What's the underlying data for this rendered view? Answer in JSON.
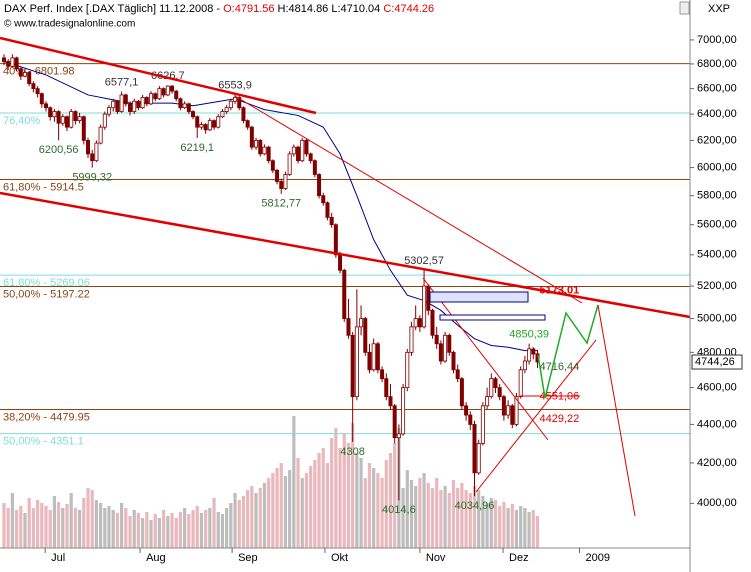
{
  "header": {
    "title": "DAX Perf. Index [.DAX  Täglich] 11.12.2008 - ",
    "open": "O:4791.56",
    "high_low": " H:4814.86 L:4710.04 ",
    "close": "C:4744.26",
    "copyright": "© www.tradesignalonline.com",
    "corner": "XXP"
  },
  "chart_data": {
    "type": "candlestick",
    "log_scale": true,
    "candle_color": "#800000",
    "xlim": [
      -0.95,
      163.3
    ],
    "ylim": [
      3790,
      7240
    ],
    "yticks": [
      {
        "value": 4000,
        "label": "4000,00"
      },
      {
        "value": 4200,
        "label": "4200,00"
      },
      {
        "value": 4400,
        "label": "4400,00"
      },
      {
        "value": 4600,
        "label": "4600,00"
      },
      {
        "value": 4800,
        "label": "4800,00"
      },
      {
        "value": 5000,
        "label": "5000,00"
      },
      {
        "value": 5200,
        "label": "5200,00"
      },
      {
        "value": 5400,
        "label": "5400,00"
      },
      {
        "value": 5600,
        "label": "5600,00"
      },
      {
        "value": 5800,
        "label": "5800,00"
      },
      {
        "value": 6000,
        "label": "6000,00"
      },
      {
        "value": 6200,
        "label": "6200,00"
      },
      {
        "value": 6400,
        "label": "6400,00"
      },
      {
        "value": 6600,
        "label": "6600,00"
      },
      {
        "value": 6800,
        "label": "6800,00"
      },
      {
        "value": 7000,
        "label": "7000,00"
      }
    ],
    "xticks": [
      {
        "value": 9.8,
        "label": "Jul"
      },
      {
        "value": 32.4,
        "label": "Aug"
      },
      {
        "value": 54.3,
        "label": "Sep"
      },
      {
        "value": 76.4,
        "label": "Okt"
      },
      {
        "value": 99,
        "label": "Nov"
      },
      {
        "value": 118.8,
        "label": "Dez"
      },
      {
        "value": 137,
        "label": "2009"
      }
    ],
    "ohlc": [
      [
        6850,
        6880,
        6790,
        6820
      ],
      [
        6820,
        6840,
        6750,
        6780
      ],
      [
        6780,
        6880,
        6770,
        6850
      ],
      [
        6850,
        6860,
        6740,
        6760
      ],
      [
        6760,
        6770,
        6670,
        6700
      ],
      [
        6700,
        6760,
        6690,
        6730
      ],
      [
        6730,
        6740,
        6620,
        6640
      ],
      [
        6640,
        6660,
        6570,
        6600
      ],
      [
        6600,
        6620,
        6530,
        6560
      ],
      [
        6560,
        6570,
        6450,
        6480
      ],
      [
        6480,
        6500,
        6420,
        6450
      ],
      [
        6450,
        6460,
        6350,
        6380
      ],
      [
        6380,
        6440,
        6340,
        6420
      ],
      [
        6420,
        6430,
        6200.56,
        6330
      ],
      [
        6330,
        6400,
        6310,
        6380
      ],
      [
        6380,
        6390,
        6270,
        6300
      ],
      [
        6300,
        6440,
        6290,
        6420
      ],
      [
        6420,
        6430,
        6320,
        6350
      ],
      [
        6350,
        6410,
        6330,
        6380
      ],
      [
        6380,
        6390,
        6170,
        6200
      ],
      [
        6200,
        6220,
        6070,
        6100
      ],
      [
        6100,
        6130,
        5999.32,
        6050
      ],
      [
        6050,
        6200,
        6040,
        6180
      ],
      [
        6180,
        6320,
        6170,
        6300
      ],
      [
        6300,
        6420,
        6280,
        6400
      ],
      [
        6400,
        6470,
        6380,
        6450
      ],
      [
        6450,
        6520,
        6420,
        6500
      ],
      [
        6500,
        6510,
        6400,
        6420
      ],
      [
        6420,
        6577.1,
        6410,
        6550
      ],
      [
        6550,
        6560,
        6460,
        6480
      ],
      [
        6480,
        6500,
        6390,
        6420
      ],
      [
        6420,
        6520,
        6400,
        6500
      ],
      [
        6500,
        6510,
        6430,
        6450
      ],
      [
        6450,
        6550,
        6440,
        6530
      ],
      [
        6530,
        6540,
        6460,
        6480
      ],
      [
        6480,
        6580,
        6470,
        6560
      ],
      [
        6560,
        6570,
        6500,
        6520
      ],
      [
        6520,
        6620,
        6510,
        6600
      ],
      [
        6600,
        6610,
        6530,
        6550
      ],
      [
        6550,
        6626.7,
        6540,
        6620
      ],
      [
        6620,
        6630,
        6560,
        6580
      ],
      [
        6580,
        6590,
        6500,
        6520
      ],
      [
        6520,
        6530,
        6430,
        6450
      ],
      [
        6450,
        6500,
        6440,
        6480
      ],
      [
        6480,
        6490,
        6400,
        6420
      ],
      [
        6420,
        6430,
        6360,
        6380
      ],
      [
        6380,
        6390,
        6219.1,
        6300
      ],
      [
        6300,
        6340,
        6280,
        6320
      ],
      [
        6320,
        6330,
        6250,
        6280
      ],
      [
        6280,
        6370,
        6270,
        6350
      ],
      [
        6350,
        6360,
        6280,
        6300
      ],
      [
        6300,
        6400,
        6290,
        6380
      ],
      [
        6380,
        6440,
        6370,
        6420
      ],
      [
        6420,
        6470,
        6400,
        6450
      ],
      [
        6450,
        6520,
        6430,
        6500
      ],
      [
        6500,
        6553.9,
        6480,
        6530
      ],
      [
        6530,
        6540,
        6430,
        6450
      ],
      [
        6450,
        6460,
        6330,
        6350
      ],
      [
        6350,
        6360,
        6280,
        6300
      ],
      [
        6300,
        6310,
        6130,
        6150
      ],
      [
        6150,
        6220,
        6130,
        6200
      ],
      [
        6200,
        6210,
        6080,
        6100
      ],
      [
        6100,
        6170,
        6090,
        6150
      ],
      [
        6150,
        6160,
        6030,
        6050
      ],
      [
        6050,
        6060,
        5960,
        5980
      ],
      [
        5980,
        5990,
        5880,
        5900
      ],
      [
        5900,
        5920,
        5812.77,
        5850
      ],
      [
        5850,
        5970,
        5840,
        5950
      ],
      [
        5950,
        6120,
        5940,
        6100
      ],
      [
        6100,
        6170,
        6080,
        6150
      ],
      [
        6150,
        6160,
        6030,
        6050
      ],
      [
        6050,
        6220,
        6040,
        6200
      ],
      [
        6200,
        6210,
        6080,
        6100
      ],
      [
        6100,
        6110,
        6030,
        6050
      ],
      [
        6050,
        6060,
        5930,
        5950
      ],
      [
        5950,
        5960,
        5780,
        5800
      ],
      [
        5800,
        5820,
        5730,
        5750
      ],
      [
        5750,
        5760,
        5630,
        5650
      ],
      [
        5650,
        5680,
        5580,
        5600
      ],
      [
        5600,
        5610,
        5380,
        5400
      ],
      [
        5400,
        5420,
        5280,
        5300
      ],
      [
        5300,
        5310,
        4980,
        5000
      ],
      [
        5000,
        5120,
        4880,
        4900
      ],
      [
        4900,
        4920,
        4308,
        4550
      ],
      [
        4550,
        5180,
        4530,
        4950
      ],
      [
        4950,
        5080,
        4900,
        5000
      ],
      [
        5000,
        5010,
        4780,
        4800
      ],
      [
        4800,
        4850,
        4680,
        4700
      ],
      [
        4700,
        4880,
        4690,
        4850
      ],
      [
        4850,
        4860,
        4680,
        4700
      ],
      [
        4700,
        4720,
        4630,
        4650
      ],
      [
        4650,
        4680,
        4530,
        4550
      ],
      [
        4550,
        4620,
        4480,
        4500
      ],
      [
        4500,
        4510,
        4300,
        4330
      ],
      [
        4330,
        4400,
        4014.6,
        4350
      ],
      [
        4350,
        4620,
        4340,
        4600
      ],
      [
        4600,
        4820,
        4580,
        4800
      ],
      [
        4800,
        4980,
        4780,
        4950
      ],
      [
        4950,
        5080,
        4930,
        5000
      ],
      [
        5000,
        5020,
        4920,
        4950
      ],
      [
        4950,
        5302.57,
        4940,
        5200
      ],
      [
        5200,
        5210,
        5020,
        5050
      ],
      [
        5050,
        5060,
        4880,
        4900
      ],
      [
        4900,
        4950,
        4820,
        4850
      ],
      [
        4850,
        4870,
        4730,
        4750
      ],
      [
        4750,
        4920,
        4740,
        4900
      ],
      [
        4900,
        4910,
        4780,
        4800
      ],
      [
        4800,
        4810,
        4680,
        4700
      ],
      [
        4700,
        4730,
        4630,
        4650
      ],
      [
        4650,
        4660,
        4480,
        4500
      ],
      [
        4500,
        4520,
        4420,
        4450
      ],
      [
        4450,
        4470,
        4370,
        4400
      ],
      [
        4400,
        4420,
        4034.96,
        4150
      ],
      [
        4150,
        4320,
        4140,
        4300
      ],
      [
        4300,
        4520,
        4290,
        4500
      ],
      [
        4500,
        4600,
        4480,
        4550
      ],
      [
        4550,
        4680,
        4540,
        4650
      ],
      [
        4650,
        4660,
        4570,
        4600
      ],
      [
        4600,
        4620,
        4530,
        4550
      ],
      [
        4550,
        4560,
        4420,
        4450
      ],
      [
        4450,
        4530,
        4430,
        4500
      ],
      [
        4500,
        4510,
        4380,
        4400
      ],
      [
        4400,
        4570,
        4390,
        4550
      ],
      [
        4550,
        4720,
        4540,
        4700
      ],
      [
        4700,
        4780,
        4680,
        4750
      ],
      [
        4750,
        4850.39,
        4730,
        4820
      ],
      [
        4820,
        4830,
        4760,
        4790
      ],
      [
        4791.56,
        4814.86,
        4710.04,
        4744.26
      ]
    ],
    "volume": [
      45,
      40,
      55,
      38,
      42,
      35,
      50,
      40,
      48,
      45,
      42,
      38,
      52,
      46,
      40,
      44,
      55,
      40,
      38,
      50,
      60,
      58,
      48,
      45,
      40,
      42,
      38,
      35,
      45,
      40,
      32,
      38,
      35,
      30,
      36,
      28,
      34,
      30,
      38,
      32,
      35,
      30,
      36,
      40,
      34,
      38,
      42,
      35,
      38,
      40,
      50,
      36,
      34,
      40,
      45,
      55,
      48,
      52,
      58,
      62,
      55,
      60,
      65,
      70,
      75,
      80,
      85,
      72,
      78,
      132,
      90,
      70,
      75,
      82,
      88,
      95,
      100,
      85,
      110,
      120,
      100,
      115,
      105,
      125,
      95,
      90,
      70,
      85,
      80,
      75,
      70,
      88,
      95,
      105,
      120,
      60,
      78,
      68,
      62,
      70,
      75,
      65,
      60,
      70,
      58,
      62,
      55,
      68,
      60,
      65,
      58,
      55,
      62,
      58,
      52,
      45,
      50,
      48,
      42,
      46,
      40,
      44,
      38,
      42,
      40,
      36,
      38,
      32
    ],
    "ma": {
      "color": "#00008b",
      "x": [
        0,
        10,
        20,
        30,
        40,
        45,
        55,
        62,
        70,
        76,
        80,
        84,
        88,
        92,
        96,
        100,
        104,
        108,
        112,
        116,
        120,
        124,
        127
      ],
      "values": [
        6820,
        6710,
        6550,
        6486,
        6486,
        6465,
        6520,
        6435,
        6390,
        6300,
        6100,
        5800,
        5500,
        5300,
        5143,
        5110,
        5050,
        4960,
        4880,
        4840,
        4830,
        4810,
        4810
      ]
    },
    "levels": [
      {
        "value": 6801.98,
        "label": "40% - 6801.98",
        "color": "#8b4513"
      },
      {
        "value": 6409,
        "label": "76,40%",
        "color": "#7fdcdc"
      },
      {
        "value": 5914.5,
        "label": "61,80% - 5914.5",
        "color": "#8b4513"
      },
      {
        "value": 5269.06,
        "label": "61,80% - 5269.06",
        "color": "#7fdcdc"
      },
      {
        "value": 5197.22,
        "label": "50,00% - 5197.22",
        "color": "#8b4513"
      },
      {
        "value": 4479.95,
        "label": "38,20% - 4479.95",
        "color": "#8b4513"
      },
      {
        "value": 4351.1,
        "label": "50,00% - 4351.1",
        "color": "#7fdcdc"
      }
    ],
    "points": [
      {
        "index": 13,
        "value": 6200.56,
        "label": "6200,56",
        "color": "#2e6b2e"
      },
      {
        "index": 21,
        "value": 5999.32,
        "label": "5999,32",
        "color": "#2e6b2e"
      },
      {
        "index": 28,
        "value": 6577.1,
        "label": "6577,1",
        "color": "#333333"
      },
      {
        "index": 39,
        "value": 6626.7,
        "label": "6626,7",
        "color": "#333333"
      },
      {
        "index": 46,
        "value": 6219.1,
        "label": "6219,1",
        "color": "#2e6b2e"
      },
      {
        "index": 55,
        "value": 6553.9,
        "label": "6553,9",
        "color": "#333333"
      },
      {
        "index": 66,
        "value": 5812.77,
        "label": "5812,77",
        "color": "#2e6b2e"
      },
      {
        "index": 83,
        "value": 4308,
        "label": "4308",
        "color": "#2e6b2e"
      },
      {
        "index": 94,
        "value": 4014.6,
        "label": "4014,6",
        "color": "#2e6b2e"
      },
      {
        "index": 100,
        "value": 5302.57,
        "label": "5302,57",
        "color": "#333333"
      },
      {
        "index": 112,
        "value": 4034.96,
        "label": "4034,96",
        "color": "#2e6b2e"
      },
      {
        "index": 125,
        "value": 4850.39,
        "label": "4850,39",
        "color": "#22aa22"
      }
    ],
    "targets": [
      {
        "value": 5173.01,
        "label": "5173,01",
        "color": "#e00000"
      },
      {
        "value": 4716.44,
        "label": "4716,44",
        "color": "#2e6b2e"
      },
      {
        "value": 4551.06,
        "label": "4551,06",
        "color": "#e00000"
      },
      {
        "value": 4429.22,
        "label": "4429,22",
        "color": "#e00000"
      }
    ],
    "last_price": {
      "value": 4744.26,
      "label": "4744,26"
    }
  }
}
